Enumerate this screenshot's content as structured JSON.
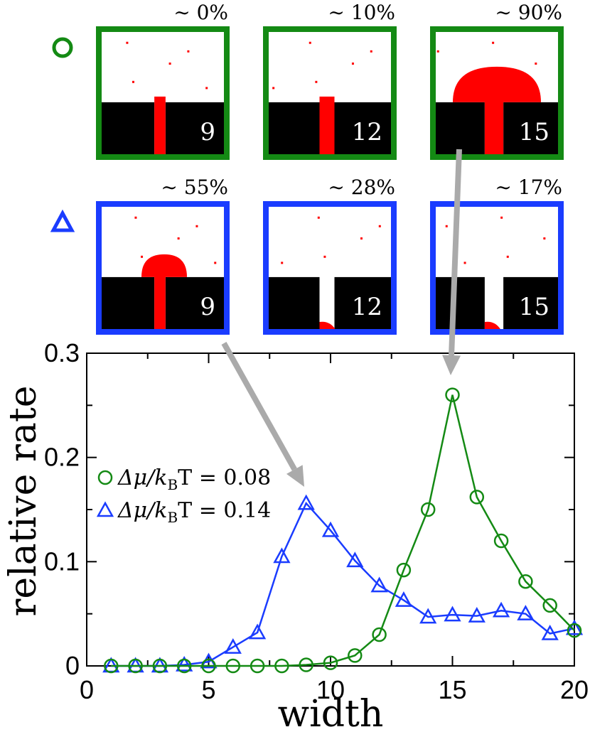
{
  "colors": {
    "green": "#148a14",
    "blue": "#1a3cff",
    "red": "#ff0000",
    "black": "#000000",
    "arrow": "#aaaaaa"
  },
  "panels": {
    "rows": [
      {
        "marker": "circle",
        "color_key": "green",
        "items": [
          {
            "percent_label": "∼ 0%",
            "width_label": "9",
            "width": 9,
            "fill": "channel-partial"
          },
          {
            "percent_label": "∼ 10%",
            "width_label": "12",
            "width": 12,
            "fill": "channel-partial"
          },
          {
            "percent_label": "∼ 90%",
            "width_label": "15",
            "width": 15,
            "fill": "overgrown"
          }
        ]
      },
      {
        "marker": "triangle",
        "color_key": "blue",
        "items": [
          {
            "percent_label": "∼ 55%",
            "width_label": "9",
            "width": 9,
            "fill": "overgrown"
          },
          {
            "percent_label": "∼ 28%",
            "width_label": "12",
            "width": 12,
            "fill": "bottom-seed"
          },
          {
            "percent_label": "∼ 17%",
            "width_label": "15",
            "width": 15,
            "fill": "bottom-seed"
          }
        ]
      }
    ]
  },
  "chart_data": {
    "type": "line",
    "xlabel": "width",
    "ylabel": "relative rate",
    "xlim": [
      0,
      20
    ],
    "ylim": [
      0,
      0.3
    ],
    "xticks": [
      0,
      5,
      10,
      15,
      20
    ],
    "xtick_labels": [
      "0",
      "5",
      "10",
      "15",
      "20"
    ],
    "yticks": [
      0,
      0.1,
      0.2,
      0.3
    ],
    "ytick_labels": [
      "0",
      "0.1",
      "0.2",
      "0.3"
    ],
    "legend_position": "middle-left",
    "series": [
      {
        "name": "Δμ/k_BT = 0.08",
        "label_lhs": "Δμ/k",
        "label_sub": "B",
        "label_rhs": "T = 0.08",
        "marker": "circle",
        "color_key": "green",
        "x": [
          1,
          2,
          3,
          4,
          5,
          6,
          7,
          8,
          9,
          10,
          11,
          12,
          13,
          14,
          15,
          16,
          17,
          18,
          19,
          20
        ],
        "values": [
          0,
          0,
          0,
          0,
          0,
          0,
          0,
          0,
          0.001,
          0.003,
          0.01,
          0.03,
          0.092,
          0.15,
          0.26,
          0.162,
          0.12,
          0.081,
          0.058,
          0.034
        ]
      },
      {
        "name": "Δμ/k_BT = 0.14",
        "label_lhs": "Δμ/k",
        "label_sub": "B",
        "label_rhs": "T = 0.14",
        "marker": "triangle",
        "color_key": "blue",
        "x": [
          1,
          2,
          3,
          4,
          5,
          6,
          7,
          8,
          9,
          10,
          11,
          12,
          13,
          14,
          15,
          16,
          17,
          18,
          19,
          20
        ],
        "values": [
          0,
          0,
          0,
          0.001,
          0.004,
          0.018,
          0.032,
          0.105,
          0.156,
          0.13,
          0.101,
          0.077,
          0.063,
          0.047,
          0.049,
          0.048,
          0.053,
          0.05,
          0.031,
          0.036
        ]
      }
    ]
  }
}
